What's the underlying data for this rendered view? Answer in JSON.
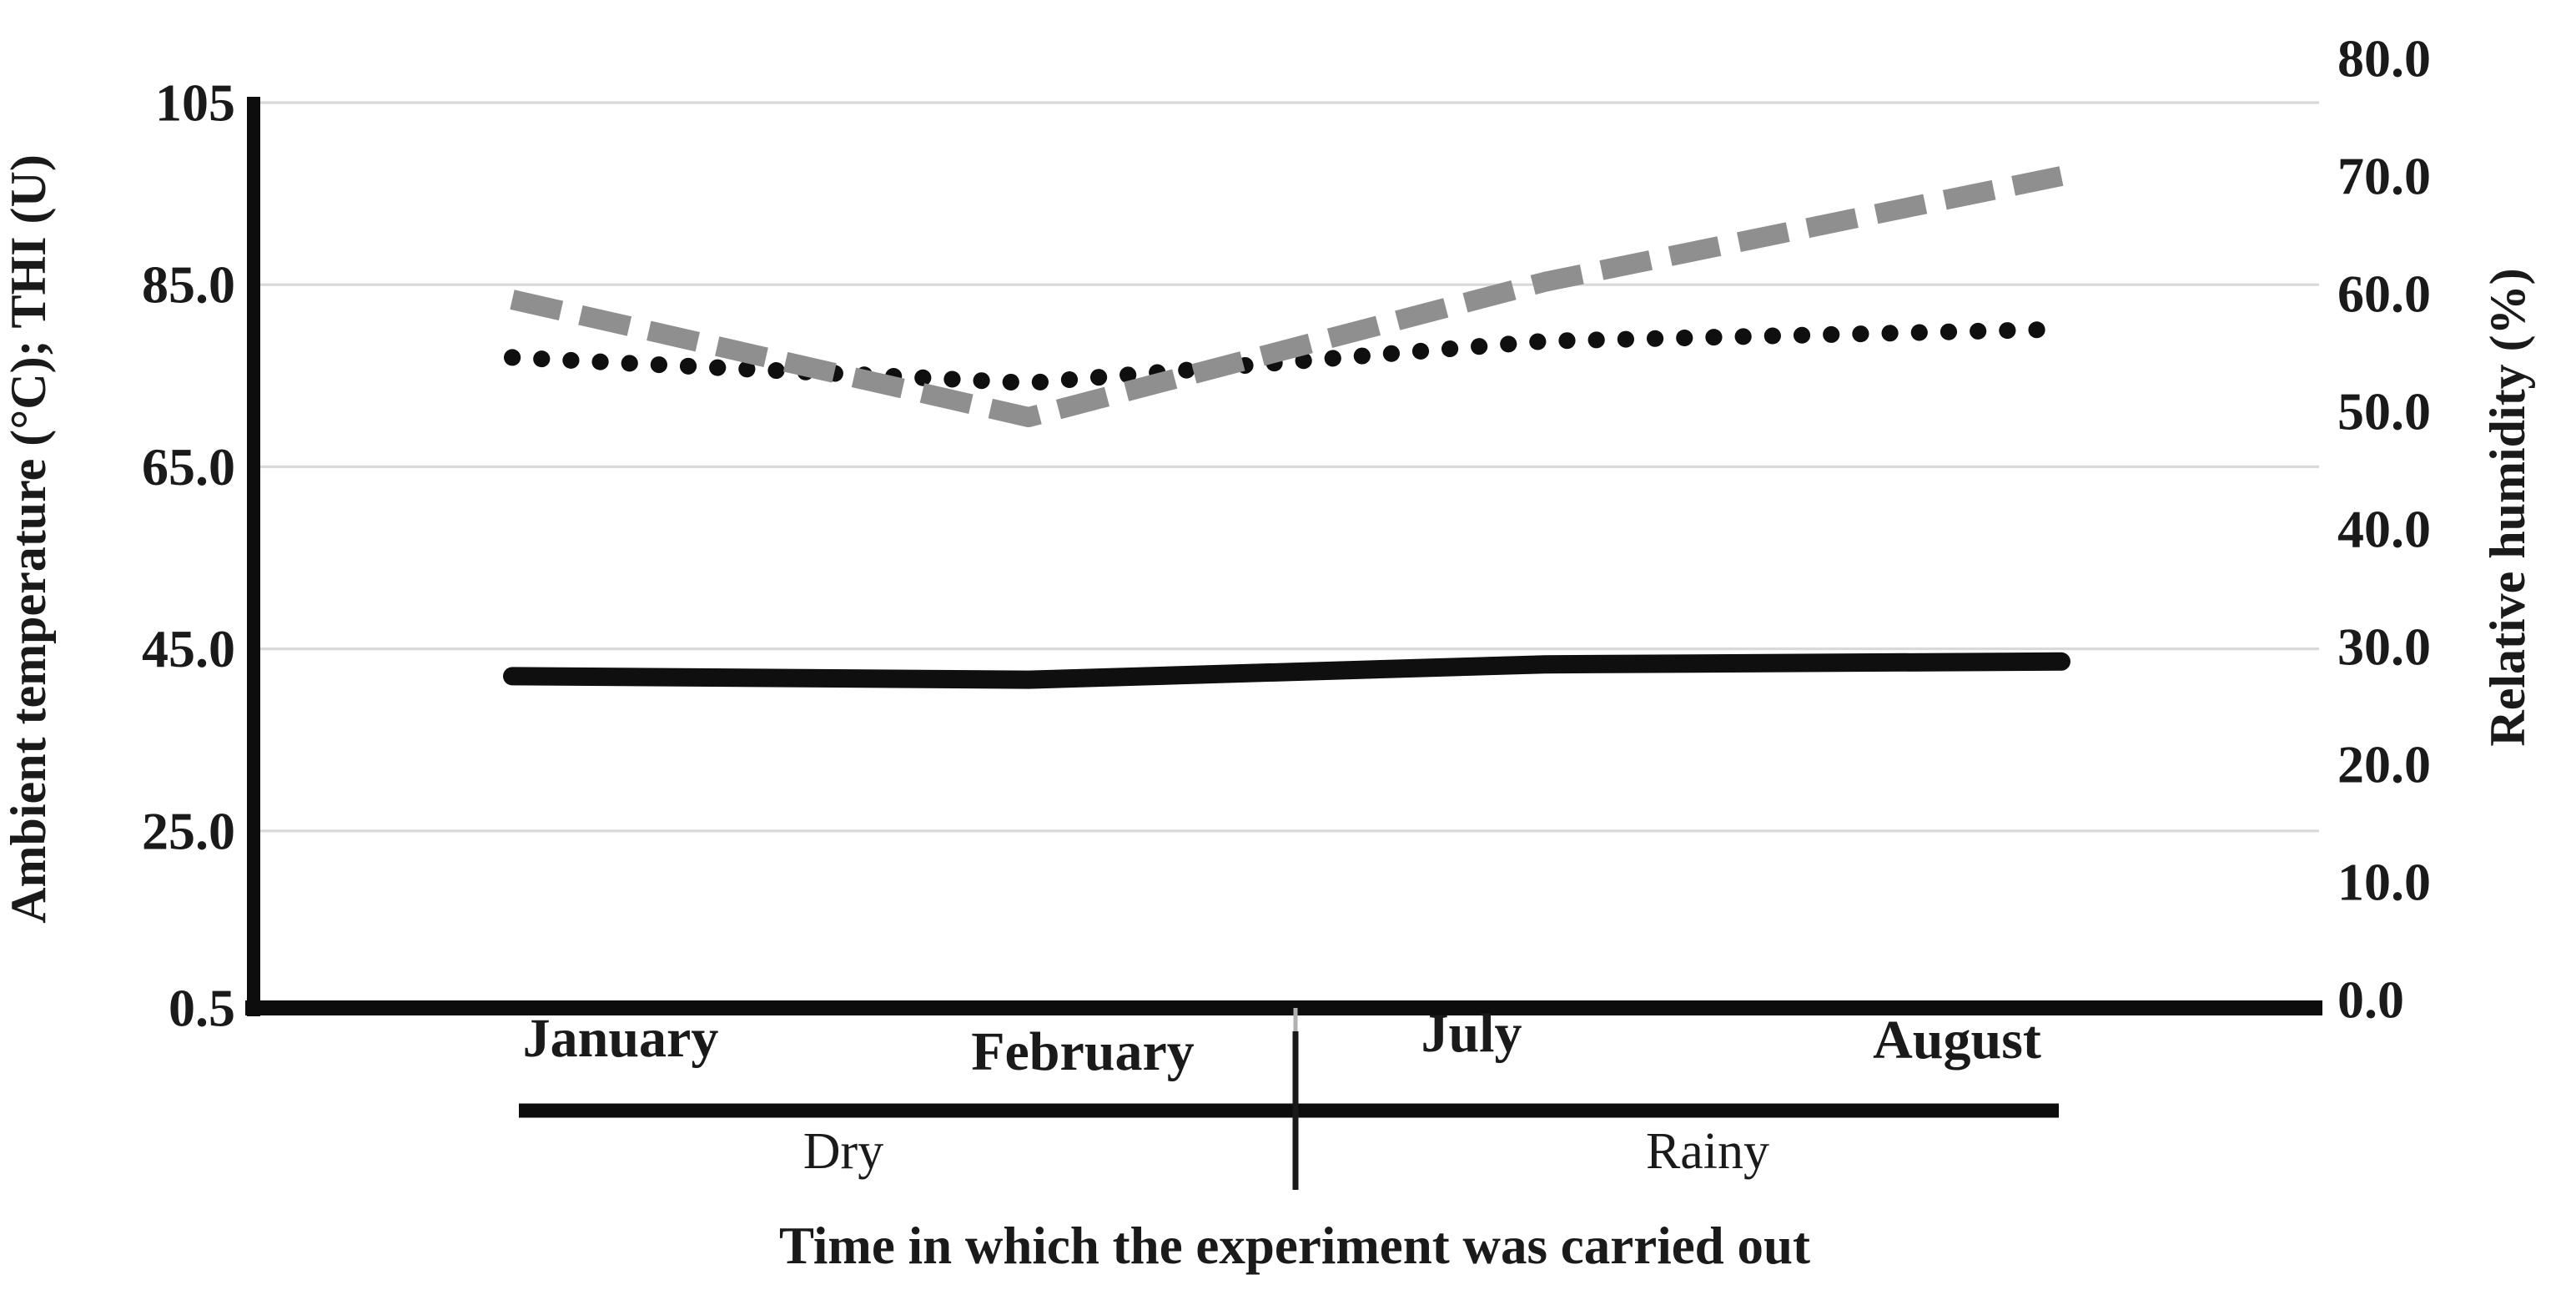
{
  "titles": {
    "x_axis": "Time in which the experiment was carried out",
    "y_left": "Ambient temperature (°C); THI (U)",
    "y_right": "Relative humidity (%)"
  },
  "chart_data": {
    "type": "line",
    "title": "",
    "legend": "none",
    "grid": "horizontal",
    "categories": [
      "January",
      "February",
      "July",
      "August"
    ],
    "x_groups": [
      {
        "label": "Dry",
        "span": [
          "January",
          "February"
        ]
      },
      {
        "label": "Rainy",
        "span": [
          "July",
          "August"
        ]
      }
    ],
    "left_axis": {
      "title": "Ambient temperature (°C); THI (U)",
      "tick_labels": [
        "105",
        "85.0",
        "65.0",
        "45.0",
        "25.0",
        "0.5"
      ]
    },
    "right_axis": {
      "title": "Relative humidity (%)",
      "tick_labels": [
        "80.0",
        "70.0",
        "60.0",
        "50.0",
        "40.0",
        "30.0",
        "20.0",
        "10.0",
        "0.0"
      ],
      "range": [
        0,
        80
      ]
    },
    "series": [
      {
        "name": "Ambient temperature (°C)",
        "axis": "left",
        "line_style": "solid",
        "color": "#0f0f0f",
        "values": [
          42.0,
          41.6,
          43.3,
          43.6
        ]
      },
      {
        "name": "THI (U)",
        "axis": "left",
        "line_style": "dotted",
        "color": "#0f0f0f",
        "values": [
          77.0,
          74.2,
          78.8,
          80.1
        ]
      },
      {
        "name": "Relative humidity (%)",
        "axis": "right",
        "line_style": "dashed",
        "color": "#8f8f8f",
        "values": [
          59.5,
          49.5,
          61.0,
          70.0
        ]
      }
    ]
  },
  "colors": {
    "grid": "#d9d9d9",
    "axis": "#0d0d0d",
    "text": "#1a1a1a",
    "tick_minor": "#b0b0b0",
    "humidity_line": "#8f8f8f"
  }
}
